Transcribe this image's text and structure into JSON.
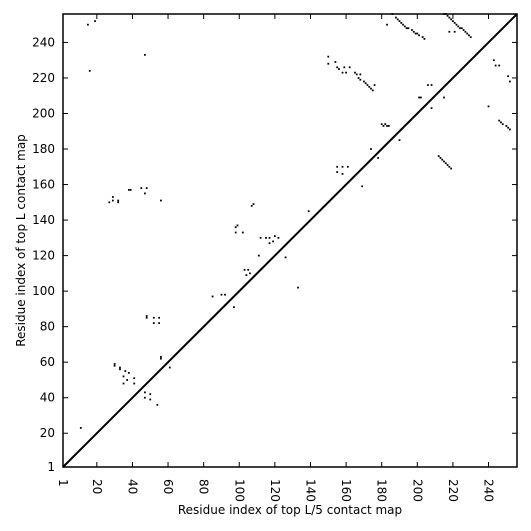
{
  "chart_data": {
    "type": "scatter",
    "title": "",
    "xlabel": "Residue index of top L/5 contact map",
    "ylabel": "Residue index of top L contact map",
    "xlim": [
      1,
      256
    ],
    "ylim": [
      1,
      256
    ],
    "x_ticks": [
      1,
      20,
      40,
      60,
      80,
      100,
      120,
      140,
      160,
      180,
      200,
      220,
      240
    ],
    "y_ticks": [
      1,
      20,
      40,
      60,
      80,
      100,
      120,
      140,
      160,
      180,
      200,
      220,
      240
    ],
    "x_tick_rotation": -90,
    "grid": false,
    "legend": "none",
    "diagonal": {
      "from": [
        1,
        1
      ],
      "to": [
        256,
        256
      ]
    },
    "marker_color": "#000000",
    "line_color": "#000000",
    "series": [
      {
        "points": [
          [
            11,
            23
          ],
          [
            15,
            250
          ],
          [
            16,
            224
          ],
          [
            19,
            252
          ],
          [
            27,
            150
          ],
          [
            29,
            153
          ],
          [
            29,
            151
          ],
          [
            30,
            58
          ],
          [
            30,
            59
          ],
          [
            32,
            150
          ],
          [
            32,
            151
          ],
          [
            33,
            56
          ],
          [
            33,
            57
          ],
          [
            35,
            52
          ],
          [
            35,
            48
          ],
          [
            36,
            55
          ],
          [
            37,
            50
          ],
          [
            38,
            157
          ],
          [
            39,
            157
          ],
          [
            38,
            54
          ],
          [
            41,
            51
          ],
          [
            41,
            48
          ],
          [
            45,
            158
          ],
          [
            47,
            155
          ],
          [
            48,
            158
          ],
          [
            47,
            233
          ],
          [
            47,
            40
          ],
          [
            47,
            43
          ],
          [
            48,
            85
          ],
          [
            48,
            86
          ],
          [
            50,
            39
          ],
          [
            50,
            42
          ],
          [
            52,
            85
          ],
          [
            52,
            82
          ],
          [
            54,
            36
          ],
          [
            55,
            82
          ],
          [
            55,
            85
          ],
          [
            56,
            62
          ],
          [
            56,
            63
          ],
          [
            56,
            151
          ],
          [
            61,
            57
          ],
          [
            85,
            97
          ],
          [
            90,
            98
          ],
          [
            92,
            98
          ],
          [
            97,
            91
          ],
          [
            98,
            133
          ],
          [
            98,
            136
          ],
          [
            99,
            137
          ],
          [
            102,
            133
          ],
          [
            103,
            112
          ],
          [
            104,
            109
          ],
          [
            105,
            112
          ],
          [
            106,
            110
          ],
          [
            107,
            148
          ],
          [
            108,
            149
          ],
          [
            111,
            120
          ],
          [
            112,
            130
          ],
          [
            115,
            130
          ],
          [
            117,
            127
          ],
          [
            117,
            130
          ],
          [
            119,
            128
          ],
          [
            120,
            131
          ],
          [
            122,
            130
          ],
          [
            126,
            119
          ],
          [
            133,
            102
          ],
          [
            139,
            145
          ],
          [
            150,
            228
          ],
          [
            150,
            232
          ],
          [
            154,
            229
          ],
          [
            155,
            170
          ],
          [
            155,
            167
          ],
          [
            155,
            226
          ],
          [
            156,
            225
          ],
          [
            158,
            170
          ],
          [
            158,
            166
          ],
          [
            159,
            226
          ],
          [
            158,
            223
          ],
          [
            160,
            223
          ],
          [
            161,
            170
          ],
          [
            162,
            226
          ],
          [
            165,
            223
          ],
          [
            166,
            222
          ],
          [
            167,
            220
          ],
          [
            168,
            219
          ],
          [
            168,
            222
          ],
          [
            169,
            159
          ],
          [
            170,
            218
          ],
          [
            171,
            217
          ],
          [
            172,
            216
          ],
          [
            173,
            215
          ],
          [
            174,
            214
          ],
          [
            175,
            213
          ],
          [
            176,
            216
          ],
          [
            174,
            180
          ],
          [
            178,
            175
          ],
          [
            180,
            194
          ],
          [
            181,
            193
          ],
          [
            182,
            194
          ],
          [
            183,
            193
          ],
          [
            184,
            193
          ],
          [
            183,
            250
          ],
          [
            186,
            256
          ],
          [
            188,
            254
          ],
          [
            189,
            253
          ],
          [
            190,
            252
          ],
          [
            191,
            251
          ],
          [
            192,
            250
          ],
          [
            193,
            249
          ],
          [
            194,
            248
          ],
          [
            195,
            248
          ],
          [
            197,
            247
          ],
          [
            198,
            246
          ],
          [
            199,
            245
          ],
          [
            200,
            245
          ],
          [
            201,
            244
          ],
          [
            203,
            243
          ],
          [
            204,
            242
          ],
          [
            201,
            209
          ],
          [
            202,
            209
          ],
          [
            190,
            185
          ],
          [
            206,
            216
          ],
          [
            208,
            216
          ],
          [
            208,
            203
          ],
          [
            212,
            176
          ],
          [
            213,
            175
          ],
          [
            214,
            174
          ],
          [
            215,
            173
          ],
          [
            216,
            172
          ],
          [
            217,
            171
          ],
          [
            218,
            170
          ],
          [
            219,
            169
          ],
          [
            215,
            209
          ],
          [
            215,
            256
          ],
          [
            216,
            256
          ],
          [
            217,
            255
          ],
          [
            218,
            254
          ],
          [
            219,
            253
          ],
          [
            220,
            252
          ],
          [
            221,
            251
          ],
          [
            222,
            250
          ],
          [
            223,
            249
          ],
          [
            224,
            248
          ],
          [
            225,
            248
          ],
          [
            226,
            247
          ],
          [
            227,
            246
          ],
          [
            228,
            245
          ],
          [
            229,
            244
          ],
          [
            230,
            243
          ],
          [
            218,
            246
          ],
          [
            221,
            246
          ],
          [
            240,
            204
          ],
          [
            243,
            230
          ],
          [
            244,
            227
          ],
          [
            246,
            227
          ],
          [
            246,
            196
          ],
          [
            247,
            195
          ],
          [
            248,
            194
          ],
          [
            250,
            193
          ],
          [
            251,
            192
          ],
          [
            252,
            191
          ],
          [
            252,
            218
          ],
          [
            251,
            221
          ]
        ]
      }
    ]
  }
}
